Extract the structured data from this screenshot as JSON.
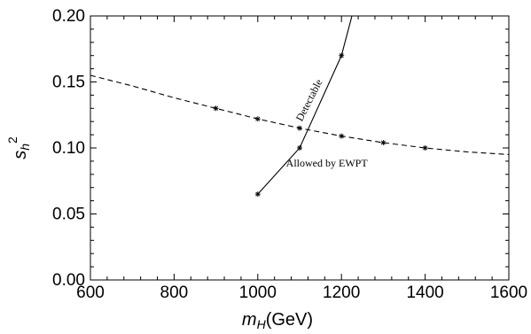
{
  "chart_data": {
    "type": "line",
    "xlabel": {
      "main": "m",
      "sub": "H",
      "unit": "(GeV)"
    },
    "ylabel": {
      "main": "s",
      "sub": "h",
      "sup": "2"
    },
    "xlim": [
      600,
      1600
    ],
    "ylim": [
      0.0,
      0.2
    ],
    "x_ticks": [
      600,
      800,
      1000,
      1200,
      1400,
      1600
    ],
    "x_tick_labels": [
      "600",
      "800",
      "1000",
      "1200",
      "1400",
      "1600"
    ],
    "y_ticks": [
      0.0,
      0.05,
      0.1,
      0.15,
      0.2
    ],
    "y_tick_labels": [
      "0.00",
      "0.05",
      "0.10",
      "0.15",
      "0.20"
    ],
    "grid": false,
    "series": [
      {
        "label": "Detectable",
        "style": "solid",
        "color": "#000000",
        "marker_x": [
          1000,
          1100,
          1200
        ],
        "marker_y": [
          0.065,
          0.1,
          0.17
        ],
        "line_x": [
          1000,
          1100,
          1200,
          1225
        ],
        "line_y": [
          0.065,
          0.1,
          0.17,
          0.2
        ]
      },
      {
        "label": "Allowed by EWPT",
        "style": "dashed",
        "color": "#000000",
        "marker_x": [
          900,
          1000,
          1100,
          1200,
          1300,
          1400
        ],
        "marker_y": [
          0.13,
          0.122,
          0.115,
          0.109,
          0.104,
          0.1
        ],
        "line_x": [
          600,
          700,
          800,
          900,
          1000,
          1100,
          1200,
          1300,
          1400,
          1500,
          1600
        ],
        "line_y": [
          0.155,
          0.147,
          0.138,
          0.13,
          0.122,
          0.115,
          0.109,
          0.104,
          0.1,
          0.097,
          0.095
        ]
      }
    ],
    "annotations": [
      {
        "text": "Detectable",
        "x": 1130,
        "y": 0.135,
        "rotate": -63
      },
      {
        "text": "Allowed by EWPT",
        "x": 1165,
        "y": 0.086,
        "rotate": 0
      }
    ]
  }
}
